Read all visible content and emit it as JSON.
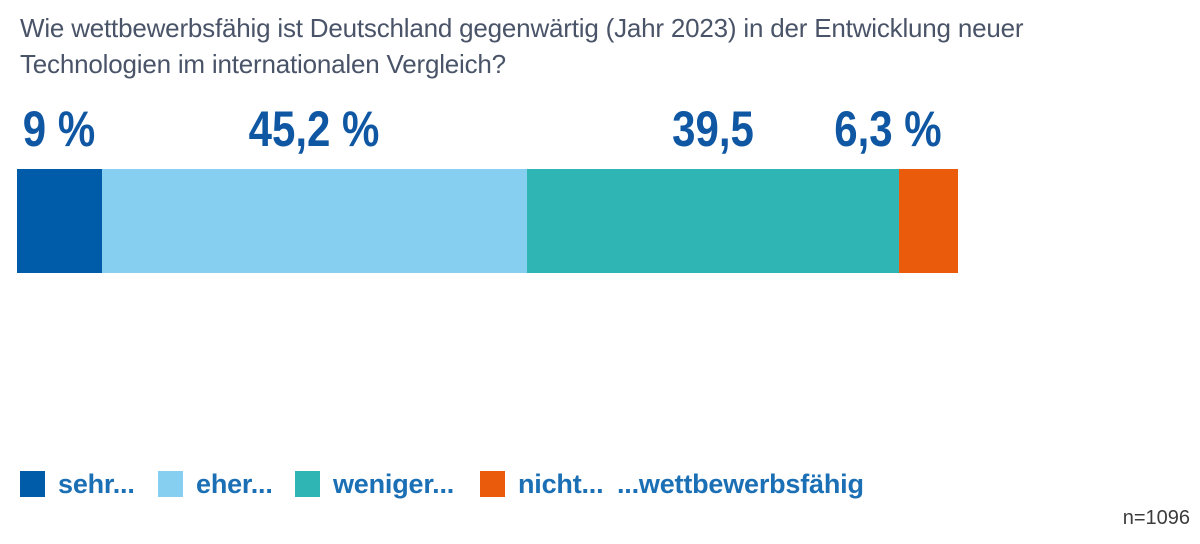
{
  "title": {
    "line1": "Wie wettbewerbsfähig ist Deutschland gegenwärtig (Jahr 2023) in der Entwicklung neuer",
    "line2": "Technologien im internationalen Vergleich?"
  },
  "chart_data": {
    "type": "bar",
    "stacked": true,
    "orientation": "horizontal",
    "title": "Wie wettbewerbsfähig ist Deutschland gegenwärtig (Jahr 2023) in der Entwicklung neuer Technologien im internationalen Vergleich?",
    "categories": [
      "sehr...",
      "eher...",
      "weniger...",
      "nicht..."
    ],
    "values": [
      9,
      45.2,
      39.5,
      6.3
    ],
    "value_labels": [
      "9 %",
      "45,2 %",
      "39,5",
      "6,3 %"
    ],
    "colors": [
      "#005CA8",
      "#87CFF0",
      "#2FB5B4",
      "#EA5B0C"
    ],
    "xlim": [
      0,
      100
    ],
    "legend_position": "bottom",
    "legend_suffix": "...wettbewerbsfähig",
    "sample_size": "n=1096"
  },
  "theme": {
    "title_text": "#4A5468",
    "value_label_text": "#0F57A3",
    "legend_text": "#1B6FB4",
    "note_text": "#3C3C3C",
    "background": "#FFFFFF"
  }
}
